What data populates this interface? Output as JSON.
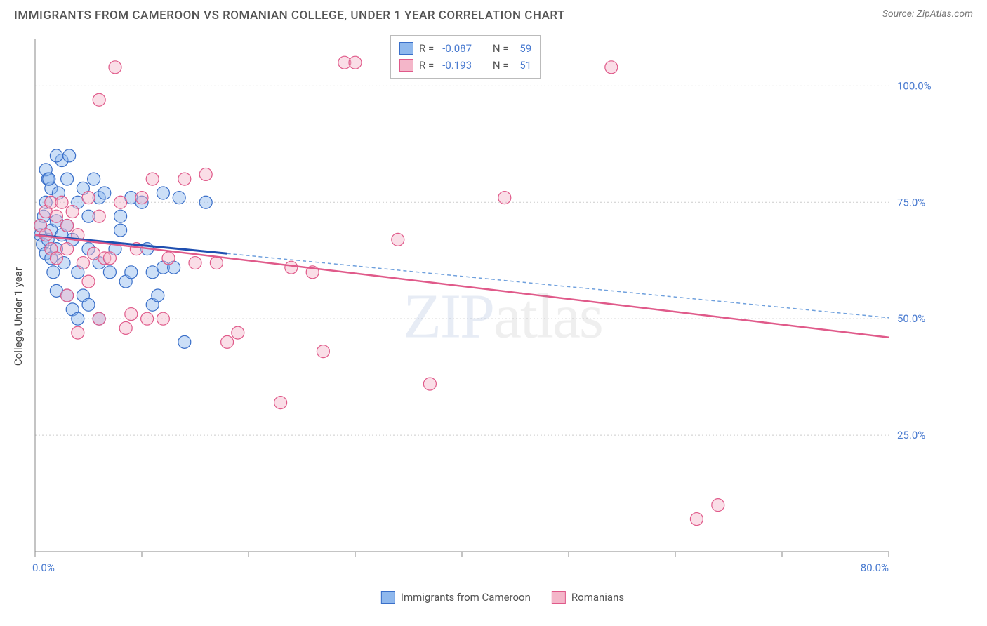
{
  "header": {
    "title": "IMMIGRANTS FROM CAMEROON VS ROMANIAN COLLEGE, UNDER 1 YEAR CORRELATION CHART",
    "source": "Source: ZipAtlas.com"
  },
  "chart": {
    "type": "scatter",
    "ylabel": "College, Under 1 year",
    "watermark": "ZIPatlas",
    "background_color": "#ffffff",
    "grid_color": "#cccccc",
    "axis_color": "#888888",
    "tick_label_color": "#4a7bd0",
    "xlim": [
      0,
      80
    ],
    "ylim": [
      0,
      110
    ],
    "xtick_start_label": "0.0%",
    "xtick_end_label": "80.0%",
    "xtick_positions": [
      0,
      10,
      20,
      30,
      40,
      50,
      60,
      70,
      80
    ],
    "ytick_positions": [
      25,
      50,
      75,
      100
    ],
    "ytick_labels": [
      "25.0%",
      "50.0%",
      "75.0%",
      "100.0%"
    ],
    "marker_radius": 9,
    "marker_opacity": 0.45,
    "series": [
      {
        "name": "Immigrants from Cameroon",
        "color_fill": "#8fb8ed",
        "color_stroke": "#3a6fc9",
        "r_value": "-0.087",
        "n_value": "59",
        "trend": {
          "x1": 0,
          "y1": 68,
          "x2": 18,
          "y2": 64,
          "solid_color": "#1f4fb0",
          "dash_color": "#6fa0dd",
          "dash": "5 4"
        },
        "points": [
          [
            0.5,
            68
          ],
          [
            0.5,
            70
          ],
          [
            0.7,
            66
          ],
          [
            0.8,
            72
          ],
          [
            1,
            64
          ],
          [
            1,
            75
          ],
          [
            1.2,
            80
          ],
          [
            1.2,
            67
          ],
          [
            1.5,
            63
          ],
          [
            1.5,
            69
          ],
          [
            1.5,
            78
          ],
          [
            1.7,
            60
          ],
          [
            2,
            71
          ],
          [
            2,
            65
          ],
          [
            2.2,
            77
          ],
          [
            2.5,
            84
          ],
          [
            2.5,
            68
          ],
          [
            2.7,
            62
          ],
          [
            3,
            80
          ],
          [
            3,
            70
          ],
          [
            3.2,
            85
          ],
          [
            3.5,
            67
          ],
          [
            3.5,
            52
          ],
          [
            4,
            60
          ],
          [
            4,
            75
          ],
          [
            4.5,
            78
          ],
          [
            4.5,
            55
          ],
          [
            5,
            65
          ],
          [
            5,
            72
          ],
          [
            5.5,
            80
          ],
          [
            6,
            76
          ],
          [
            6,
            50
          ],
          [
            6.5,
            77
          ],
          [
            7,
            60
          ],
          [
            7.5,
            65
          ],
          [
            8,
            69
          ],
          [
            8.5,
            58
          ],
          [
            9,
            60
          ],
          [
            9,
            76
          ],
          [
            10,
            75
          ],
          [
            10.5,
            65
          ],
          [
            11,
            53
          ],
          [
            11,
            60
          ],
          [
            11.5,
            55
          ],
          [
            12,
            61
          ],
          [
            12,
            77
          ],
          [
            13,
            61
          ],
          [
            13.5,
            76
          ],
          [
            14,
            45
          ],
          [
            16,
            75
          ],
          [
            2,
            56
          ],
          [
            3,
            55
          ],
          [
            4,
            50
          ],
          [
            5,
            53
          ],
          [
            1,
            82
          ],
          [
            1.3,
            80
          ],
          [
            2,
            85
          ],
          [
            6,
            62
          ],
          [
            8,
            72
          ]
        ]
      },
      {
        "name": "Romanians",
        "color_fill": "#f4b6c9",
        "color_stroke": "#e05a8a",
        "r_value": "-0.193",
        "n_value": "51",
        "trend": {
          "x1": 0,
          "y1": 68,
          "x2": 80,
          "y2": 46,
          "solid_color": "#e05a8a"
        },
        "points": [
          [
            0.5,
            70
          ],
          [
            1,
            68
          ],
          [
            1,
            73
          ],
          [
            1.5,
            75
          ],
          [
            1.5,
            65
          ],
          [
            2,
            72
          ],
          [
            2,
            63
          ],
          [
            2.5,
            75
          ],
          [
            3,
            70
          ],
          [
            3,
            65
          ],
          [
            3.5,
            73
          ],
          [
            4,
            68
          ],
          [
            4.5,
            62
          ],
          [
            5,
            76
          ],
          [
            5.5,
            64
          ],
          [
            6,
            97
          ],
          [
            6,
            72
          ],
          [
            6.5,
            63
          ],
          [
            7,
            63
          ],
          [
            7.5,
            104
          ],
          [
            8,
            75
          ],
          [
            8.5,
            48
          ],
          [
            9,
            51
          ],
          [
            9.5,
            65
          ],
          [
            10,
            76
          ],
          [
            10.5,
            50
          ],
          [
            11,
            80
          ],
          [
            12,
            50
          ],
          [
            12.5,
            63
          ],
          [
            14,
            80
          ],
          [
            15,
            62
          ],
          [
            16,
            81
          ],
          [
            17,
            62
          ],
          [
            18,
            45
          ],
          [
            19,
            47
          ],
          [
            23,
            32
          ],
          [
            24,
            61
          ],
          [
            26,
            60
          ],
          [
            27,
            43
          ],
          [
            29,
            105
          ],
          [
            30,
            105
          ],
          [
            34,
            67
          ],
          [
            37,
            36
          ],
          [
            44,
            76
          ],
          [
            54,
            104
          ],
          [
            62,
            7
          ],
          [
            64,
            10
          ],
          [
            3,
            55
          ],
          [
            4,
            47
          ],
          [
            5,
            58
          ],
          [
            6,
            50
          ]
        ]
      }
    ],
    "bottom_legend": [
      {
        "label": "Immigrants from Cameroon",
        "fill": "#8fb8ed",
        "stroke": "#3a6fc9"
      },
      {
        "label": "Romanians",
        "fill": "#f4b6c9",
        "stroke": "#e05a8a"
      }
    ]
  }
}
